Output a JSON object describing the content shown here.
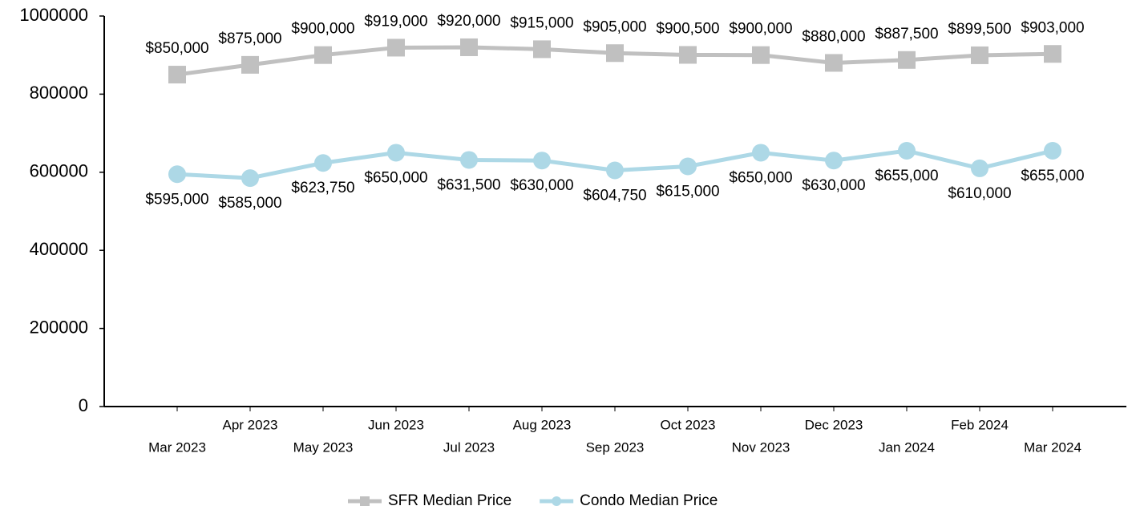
{
  "chart_data": {
    "type": "line",
    "categories": [
      "Mar 2023",
      "Apr 2023",
      "May 2023",
      "Jun 2023",
      "Jul 2023",
      "Aug 2023",
      "Sep 2023",
      "Oct 2023",
      "Nov 2023",
      "Dec 2023",
      "Jan 2024",
      "Feb 2024",
      "Mar 2024"
    ],
    "series": [
      {
        "name": "SFR Median Price",
        "color": "#c0c0c0",
        "marker": "square",
        "values": [
          850000,
          875000,
          900000,
          919000,
          920000,
          915000,
          905000,
          900500,
          900000,
          880000,
          887500,
          899500,
          903000
        ],
        "value_labels": [
          "$850,000",
          "$875,000",
          "$900,000",
          "$919,000",
          "$920,000",
          "$915,000",
          "$905,000",
          "$900,500",
          "$900,000",
          "$880,000",
          "$887,500",
          "$899,500",
          "$903,000"
        ]
      },
      {
        "name": "Condo Median Price",
        "color": "#add8e6",
        "marker": "circle",
        "values": [
          595000,
          585000,
          623750,
          650000,
          631500,
          630000,
          604750,
          615000,
          650000,
          630000,
          655000,
          610000,
          655000
        ],
        "value_labels": [
          "$595,000",
          "$585,000",
          "$623,750",
          "$650,000",
          "$631,500",
          "$630,000",
          "$604,750",
          "$615,000",
          "$650,000",
          "$630,000",
          "$655,000",
          "$610,000",
          "$655,000"
        ]
      }
    ],
    "ylim": [
      0,
      1000000
    ],
    "yticks": [
      0,
      200000,
      400000,
      600000,
      800000,
      1000000
    ],
    "grid": false,
    "legend": "bottom"
  }
}
